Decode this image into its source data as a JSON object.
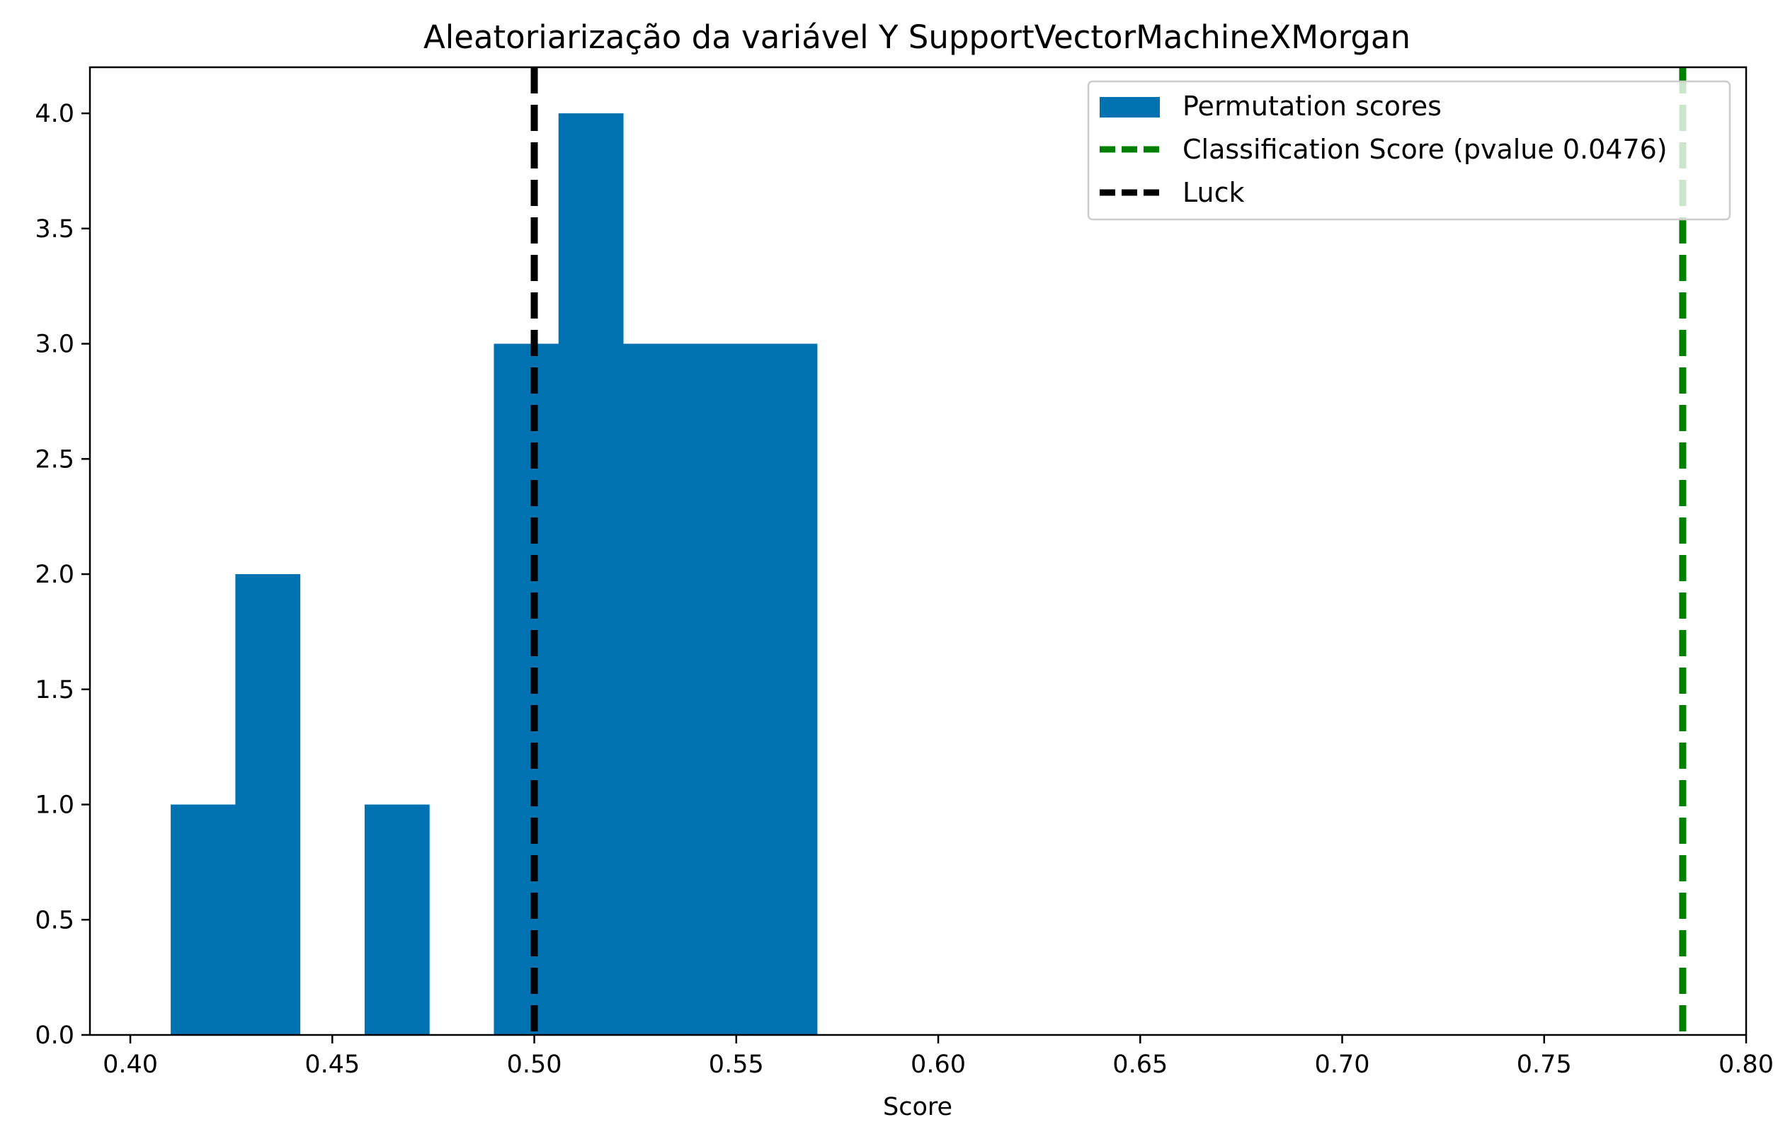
{
  "chart_data": {
    "type": "bar",
    "title": "Aleatoriarização da variável Y SupportVectorMachineXMorgan",
    "xlabel": "Score",
    "ylabel": "",
    "xlim": [
      0.39,
      0.8
    ],
    "ylim": [
      0,
      4.2
    ],
    "xticks": [
      "0.40",
      "0.45",
      "0.50",
      "0.55",
      "0.60",
      "0.65",
      "0.70",
      "0.75",
      "0.80"
    ],
    "yticks": [
      "0.0",
      "0.5",
      "1.0",
      "1.5",
      "2.0",
      "2.5",
      "3.0",
      "3.5",
      "4.0"
    ],
    "grid": false,
    "legend_position": "top-right",
    "histogram": {
      "name": "Permutation scores",
      "color": "#0072B2",
      "bins": [
        {
          "x0": 0.41,
          "x1": 0.426,
          "count": 1
        },
        {
          "x0": 0.426,
          "x1": 0.442,
          "count": 2
        },
        {
          "x0": 0.442,
          "x1": 0.458,
          "count": 0
        },
        {
          "x0": 0.458,
          "x1": 0.474,
          "count": 1
        },
        {
          "x0": 0.474,
          "x1": 0.49,
          "count": 0
        },
        {
          "x0": 0.49,
          "x1": 0.506,
          "count": 3
        },
        {
          "x0": 0.506,
          "x1": 0.522,
          "count": 4
        },
        {
          "x0": 0.522,
          "x1": 0.538,
          "count": 3
        },
        {
          "x0": 0.538,
          "x1": 0.554,
          "count": 3
        },
        {
          "x0": 0.554,
          "x1": 0.57,
          "count": 3
        }
      ]
    },
    "vlines": [
      {
        "name": "Classification Score (pvalue 0.0476)",
        "x": 0.7843,
        "color": "#008000",
        "style": "dashed"
      },
      {
        "name": "Luck",
        "x": 0.5,
        "color": "#000000",
        "style": "dashed"
      }
    ],
    "legend": [
      "Permutation scores",
      "Classification Score (pvalue 0.0476)",
      "Luck"
    ]
  }
}
